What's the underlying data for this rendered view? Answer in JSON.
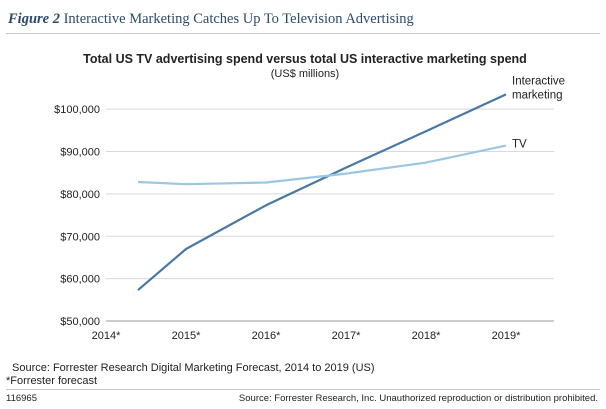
{
  "figure": {
    "number": "Figure 2",
    "title": "Interactive Marketing Catches Up To Television Advertising"
  },
  "chart_data": {
    "type": "line",
    "title": "Total US TV advertising spend versus total US interactive marketing spend",
    "subtitle": "(US$ millions)",
    "categories": [
      "2014*",
      "2015*",
      "2016*",
      "2017*",
      "2018*",
      "2019*"
    ],
    "x_values": [
      2014,
      2015,
      2016,
      2017,
      2018,
      2019
    ],
    "yticks": [
      "$50,000",
      "$60,000",
      "$70,000",
      "$80,000",
      "$90,000",
      "$100,000"
    ],
    "ylim": [
      50000,
      105000
    ],
    "series": [
      {
        "name": "Interactive marketing",
        "label_lines": [
          "Interactive",
          "marketing"
        ],
        "color": "#4a78a6",
        "x": [
          2014.4,
          2015,
          2016,
          2017,
          2018,
          2019
        ],
        "values": [
          57300,
          67000,
          77300,
          86200,
          94800,
          103500
        ]
      },
      {
        "name": "TV",
        "label_lines": [
          "TV"
        ],
        "color": "#9bc7e3",
        "x": [
          2014.4,
          2015,
          2016,
          2017,
          2018,
          2019
        ],
        "values": [
          82800,
          82300,
          82700,
          84800,
          87400,
          91400
        ]
      }
    ]
  },
  "footer": {
    "source": "Source: Forrester Research Digital Marketing Forecast, 2014 to 2019 (US)",
    "note": "*Forrester forecast",
    "doc_id": "116965",
    "copyright": "Source: Forrester Research, Inc. Unauthorized reproduction or distribution prohibited."
  }
}
